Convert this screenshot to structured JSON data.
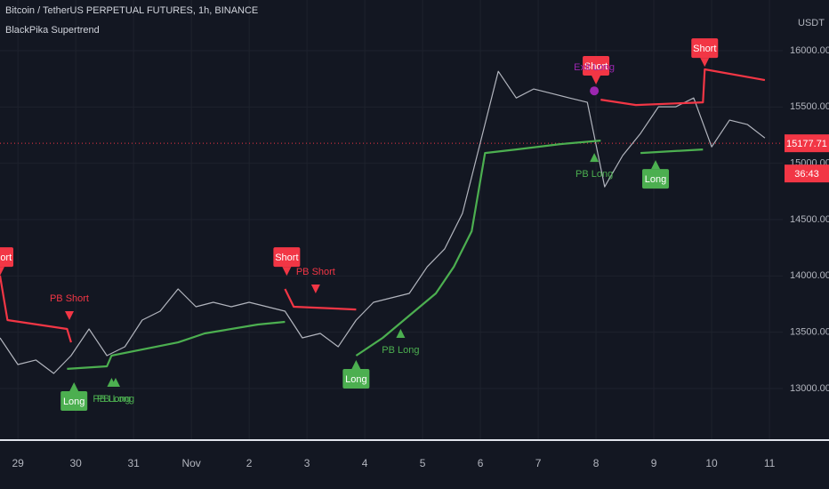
{
  "chart_data": {
    "type": "line",
    "title": "Bitcoin / TetherUS PERPETUAL FUTURES, 1h, BINANCE",
    "subtitle": "BlackPika Supertrend",
    "y_unit": "USDT",
    "xlim": [
      -0.31,
      13.23
    ],
    "xticks": [
      {
        "value": 0,
        "label": "29"
      },
      {
        "value": 1,
        "label": "30"
      },
      {
        "value": 2,
        "label": "31"
      },
      {
        "value": 3,
        "label": "Nov"
      },
      {
        "value": 4,
        "label": "2"
      },
      {
        "value": 5,
        "label": "3"
      },
      {
        "value": 6,
        "label": "4"
      },
      {
        "value": 7,
        "label": "5"
      },
      {
        "value": 8,
        "label": "6"
      },
      {
        "value": 9,
        "label": "7"
      },
      {
        "value": 10,
        "label": "8"
      },
      {
        "value": 11,
        "label": "9"
      },
      {
        "value": 12,
        "label": "10"
      },
      {
        "value": 13,
        "label": "11"
      }
    ],
    "ylim": [
      12542,
      16450
    ],
    "yticks": [
      {
        "value": 13000,
        "label": "13000.00"
      },
      {
        "value": 13500,
        "label": "13500.00"
      },
      {
        "value": 14000,
        "label": "14000.00"
      },
      {
        "value": 14500,
        "label": "14500.00"
      },
      {
        "value": 15000,
        "label": "15000.00"
      },
      {
        "value": 15500,
        "label": "15500.00"
      },
      {
        "value": 16000,
        "label": "16000.00"
      }
    ],
    "grid": true,
    "series": [
      {
        "color": "#b2b5be",
        "x": [
          -0.31,
          0,
          0.31,
          0.62,
          0.92,
          1.23,
          1.54,
          1.85,
          2.15,
          2.46,
          2.77,
          3.08,
          3.38,
          3.69,
          4.0,
          4.31,
          4.62,
          4.92,
          5.23,
          5.54,
          5.85,
          6.15,
          6.46,
          6.77,
          7.08,
          7.38,
          7.69,
          8.0,
          8.31,
          8.62,
          8.92,
          9.23,
          9.54,
          9.85,
          10.15,
          10.46,
          10.77,
          11.08,
          11.38,
          11.69,
          12.0,
          12.31,
          12.62,
          12.92
        ],
        "values": [
          13450,
          13213,
          13253,
          13134,
          13292,
          13529,
          13292,
          13371,
          13608,
          13687,
          13884,
          13726,
          13766,
          13726,
          13766,
          13726,
          13687,
          13450,
          13489,
          13371,
          13608,
          13766,
          13805,
          13845,
          14081,
          14239,
          14555,
          15186,
          15817,
          15580,
          15660,
          15620,
          15580,
          15541,
          14791,
          15068,
          15265,
          15502,
          15502,
          15580,
          15146,
          15383,
          15344,
          15225
        ]
      },
      {
        "color": "#f23645",
        "x": [
          -0.31,
          -0.18,
          0.85,
          0.92,
          1.0,
          4.62,
          4.77,
          5.85,
          6.0,
          10.08,
          10.69,
          11.85,
          11.88,
          12.92
        ],
        "values": [
          14002,
          13608,
          13529,
          13410,
          null,
          13884,
          13726,
          13702,
          null,
          15565,
          15518,
          15541,
          15834,
          15739
        ]
      },
      {
        "color": "#4caf50",
        "x": [
          0.85,
          1.54,
          1.62,
          2.77,
          3.23,
          4.15,
          4.62,
          4.8,
          5.85,
          6.31,
          6.77,
          7.23,
          7.54,
          7.85,
          8.08,
          8.62,
          9.38,
          10.08,
          10.5,
          10.77,
          11.85
        ],
        "values": [
          13174,
          13197,
          13292,
          13410,
          13489,
          13568,
          13592,
          null,
          13292,
          13450,
          13647,
          13845,
          14081,
          14397,
          15091,
          15123,
          15170,
          15202,
          null,
          15091,
          15123
        ]
      }
    ],
    "annotations": [
      {
        "text": "Short",
        "x": -0.31,
        "y": 14002,
        "style": "box",
        "side": "above",
        "color": "#f23645"
      },
      {
        "text": "PB Short",
        "x": 0.89,
        "y": 13608,
        "style": "triangle",
        "side": "above",
        "color": "#f23645"
      },
      {
        "text": "Long",
        "x": 0.97,
        "y": 13055,
        "style": "box",
        "side": "below",
        "color": "#4caf50"
      },
      {
        "text": "PB Long",
        "x": 1.62,
        "y": 13095,
        "style": "triangle",
        "side": "below",
        "color": "#4caf50"
      },
      {
        "text": "PB Long",
        "x": 1.69,
        "y": 13095,
        "style": "triangle",
        "side": "below",
        "color": "#4caf50"
      },
      {
        "text": "Short",
        "x": 4.65,
        "y": 14002,
        "style": "box",
        "side": "above",
        "color": "#f23645"
      },
      {
        "text": "PB Short",
        "x": 5.15,
        "y": 13845,
        "style": "triangle",
        "side": "above",
        "color": "#f23645"
      },
      {
        "text": "Long",
        "x": 5.85,
        "y": 13253,
        "style": "box",
        "side": "below",
        "color": "#4caf50"
      },
      {
        "text": "PB Long",
        "x": 6.62,
        "y": 13529,
        "style": "triangle",
        "side": "below",
        "color": "#4caf50"
      },
      {
        "text": "Short",
        "x": 10.0,
        "y": 15700,
        "style": "box",
        "side": "above",
        "color": "#f23645"
      },
      {
        "text": "Exit Long",
        "x": 9.97,
        "y": 15643,
        "style": "circle",
        "side": "above",
        "color": "#9c27b0"
      },
      {
        "text": "PB Long",
        "x": 9.97,
        "y": 15091,
        "style": "triangle",
        "side": "below",
        "color": "#4caf50"
      },
      {
        "text": "Long",
        "x": 11.03,
        "y": 15028,
        "style": "box",
        "side": "below",
        "color": "#4caf50"
      },
      {
        "text": "Short",
        "x": 11.88,
        "y": 15857,
        "style": "box",
        "side": "above",
        "color": "#f23645"
      }
    ],
    "last_price": 15177.71,
    "countdown": "36:43"
  }
}
